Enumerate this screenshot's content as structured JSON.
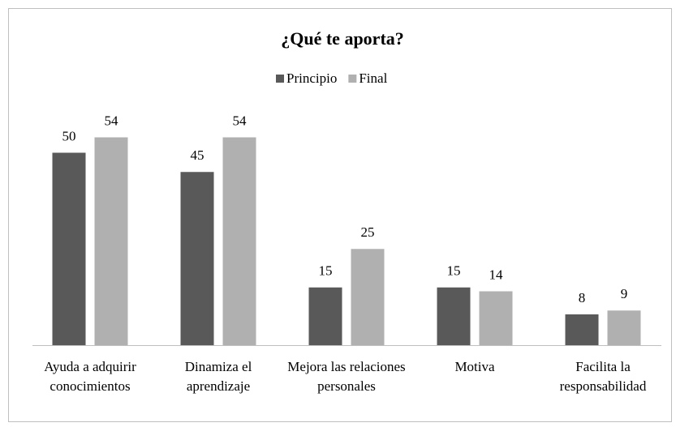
{
  "chart_data": {
    "type": "bar",
    "title": "¿Qué te aporta?",
    "categories": [
      "Ayuda a adquirir conocimientos",
      "Dinamiza el aprendizaje",
      "Mejora las relaciones personales",
      "Motiva",
      "Facilita la responsabilidad"
    ],
    "series": [
      {
        "name": "Principio",
        "color": "#595959",
        "values": [
          50,
          45,
          15,
          15,
          8
        ]
      },
      {
        "name": "Final",
        "color": "#b0b0b0",
        "values": [
          54,
          54,
          25,
          14,
          9
        ]
      }
    ],
    "legend": "top"
  }
}
